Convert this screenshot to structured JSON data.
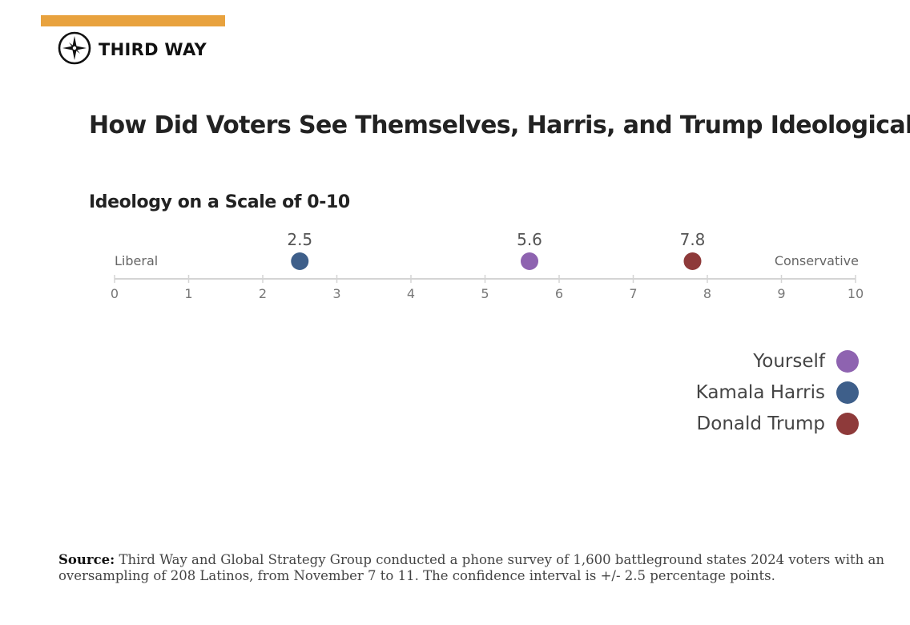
{
  "brand": {
    "name": "THIRD WAY",
    "accent_color": "#E8A23E",
    "logo_icon": "compass-icon"
  },
  "chart_data": {
    "type": "scatter",
    "title": "How Did Voters See Themselves, Harris, and Trump Ideologically?",
    "subtitle": "Ideology on a Scale of 0-10",
    "xlim": [
      0,
      10
    ],
    "ticks": [
      0,
      1,
      2,
      3,
      4,
      5,
      6,
      7,
      8,
      9,
      10
    ],
    "left_label": "Liberal",
    "right_label": "Conservative",
    "series": [
      {
        "name": "Yourself",
        "value": 5.6,
        "label": "5.6",
        "color": "#8E63B0"
      },
      {
        "name": "Kamala Harris",
        "value": 2.5,
        "label": "2.5",
        "color": "#3E5F8A"
      },
      {
        "name": "Donald Trump",
        "value": 7.8,
        "label": "7.8",
        "color": "#8E3A3A"
      }
    ],
    "legend_position": "bottom-right"
  },
  "source": {
    "label": "Source:",
    "text": "Third Way and Global Strategy Group conducted a phone survey of 1,600 battleground states 2024 voters with an oversampling of 208 Latinos, from November 7 to 11. The confidence interval is +/- 2.5 percentage points."
  }
}
